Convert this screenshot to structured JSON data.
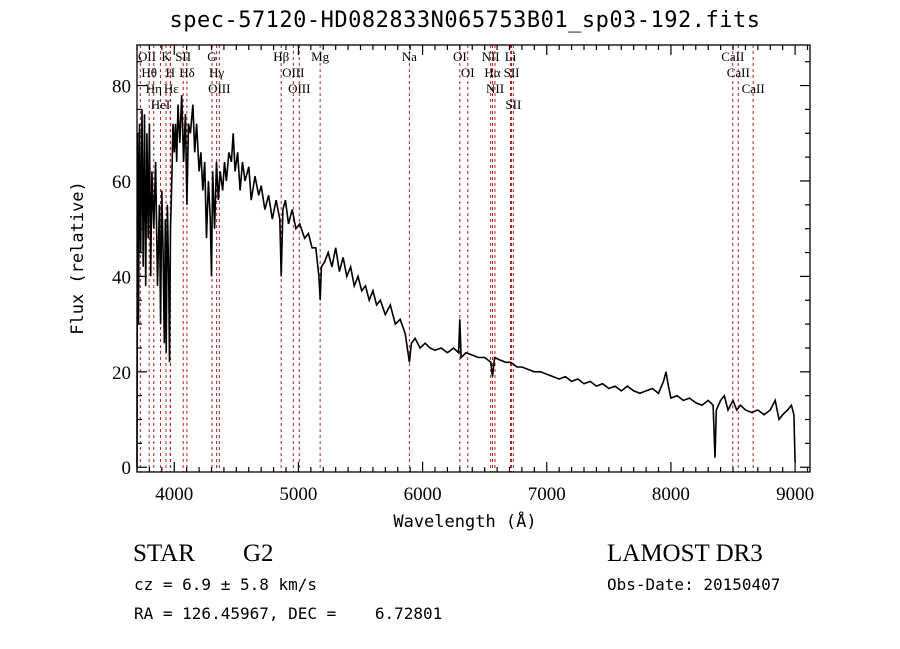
{
  "chart_data": {
    "type": "line",
    "title": "spec-57120-HD082833N065753B01_sp03-192.fits",
    "xlabel": "Wavelength (Å)",
    "ylabel": "Flux (relative)",
    "xlim": [
      3700,
      9120
    ],
    "ylim": [
      -1,
      88.5
    ],
    "xticks": [
      4000,
      5000,
      6000,
      7000,
      8000,
      9000
    ],
    "yticks": [
      0,
      20,
      40,
      60,
      80
    ],
    "grid": false,
    "line_color": "#b22222",
    "spectrum_color": "#000000",
    "spectral_lines": [
      {
        "name": "OII",
        "wavelength": 3727
      },
      {
        "name": "Hθ",
        "wavelength": 3798
      },
      {
        "name": "Hη",
        "wavelength": 3835
      },
      {
        "name": "HeI",
        "wavelength": 3889
      },
      {
        "name": "K",
        "wavelength": 3934
      },
      {
        "name": "H",
        "wavelength": 3968
      },
      {
        "name": "Hε",
        "wavelength": 3970
      },
      {
        "name": "SII",
        "wavelength": 4072
      },
      {
        "name": "Hδ",
        "wavelength": 4102
      },
      {
        "name": "G",
        "wavelength": 4304
      },
      {
        "name": "Hγ",
        "wavelength": 4341
      },
      {
        "name": "OIII",
        "wavelength": 4363
      },
      {
        "name": "Hβ",
        "wavelength": 4861
      },
      {
        "name": "OIII",
        "wavelength": 4959
      },
      {
        "name": "OIII",
        "wavelength": 5007
      },
      {
        "name": "Mg",
        "wavelength": 5175
      },
      {
        "name": "Na",
        "wavelength": 5894
      },
      {
        "name": "OI",
        "wavelength": 6300
      },
      {
        "name": "OI",
        "wavelength": 6364
      },
      {
        "name": "NII",
        "wavelength": 6548
      },
      {
        "name": "Hα",
        "wavelength": 6563
      },
      {
        "name": "NII",
        "wavelength": 6583
      },
      {
        "name": "Li",
        "wavelength": 6708
      },
      {
        "name": "SII",
        "wavelength": 6716
      },
      {
        "name": "SII",
        "wavelength": 6731
      },
      {
        "name": "CaII",
        "wavelength": 8498
      },
      {
        "name": "CaII",
        "wavelength": 8542
      },
      {
        "name": "CaII",
        "wavelength": 8662
      }
    ],
    "series": [
      {
        "name": "spectrum",
        "points": [
          [
            3700,
            0
          ],
          [
            3705,
            70
          ],
          [
            3712,
            30
          ],
          [
            3720,
            72
          ],
          [
            3730,
            45
          ],
          [
            3740,
            75
          ],
          [
            3750,
            42
          ],
          [
            3760,
            74
          ],
          [
            3770,
            38
          ],
          [
            3780,
            70
          ],
          [
            3790,
            48
          ],
          [
            3800,
            72
          ],
          [
            3810,
            40
          ],
          [
            3820,
            62
          ],
          [
            3835,
            50
          ],
          [
            3850,
            64
          ],
          [
            3865,
            38
          ],
          [
            3880,
            55
          ],
          [
            3890,
            30
          ],
          [
            3900,
            58
          ],
          [
            3910,
            45
          ],
          [
            3920,
            26
          ],
          [
            3928,
            52
          ],
          [
            3935,
            24
          ],
          [
            3945,
            55
          ],
          [
            3955,
            40
          ],
          [
            3962,
            22
          ],
          [
            3970,
            50
          ],
          [
            3980,
            60
          ],
          [
            3990,
            72
          ],
          [
            4000,
            66
          ],
          [
            4010,
            72
          ],
          [
            4020,
            64
          ],
          [
            4030,
            76
          ],
          [
            4045,
            68
          ],
          [
            4060,
            78
          ],
          [
            4075,
            64
          ],
          [
            4090,
            74
          ],
          [
            4102,
            55
          ],
          [
            4115,
            72
          ],
          [
            4130,
            70
          ],
          [
            4150,
            76
          ],
          [
            4165,
            66
          ],
          [
            4180,
            72
          ],
          [
            4200,
            62
          ],
          [
            4215,
            66
          ],
          [
            4230,
            58
          ],
          [
            4245,
            64
          ],
          [
            4260,
            48
          ],
          [
            4275,
            60
          ],
          [
            4290,
            52
          ],
          [
            4300,
            40
          ],
          [
            4310,
            62
          ],
          [
            4325,
            50
          ],
          [
            4340,
            64
          ],
          [
            4355,
            56
          ],
          [
            4370,
            62
          ],
          [
            4390,
            58
          ],
          [
            4405,
            64
          ],
          [
            4420,
            60
          ],
          [
            4440,
            66
          ],
          [
            4460,
            64
          ],
          [
            4475,
            70
          ],
          [
            4490,
            62
          ],
          [
            4510,
            66
          ],
          [
            4530,
            58
          ],
          [
            4550,
            64
          ],
          [
            4570,
            60
          ],
          [
            4600,
            63
          ],
          [
            4620,
            56
          ],
          [
            4650,
            61
          ],
          [
            4680,
            57
          ],
          [
            4700,
            59
          ],
          [
            4730,
            54
          ],
          [
            4760,
            57
          ],
          [
            4790,
            52
          ],
          [
            4820,
            56
          ],
          [
            4850,
            52
          ],
          [
            4861,
            40
          ],
          [
            4875,
            54
          ],
          [
            4895,
            56
          ],
          [
            4920,
            51
          ],
          [
            4950,
            54
          ],
          [
            4980,
            50
          ],
          [
            5010,
            51
          ],
          [
            5050,
            48
          ],
          [
            5080,
            49
          ],
          [
            5110,
            46
          ],
          [
            5140,
            46
          ],
          [
            5165,
            40
          ],
          [
            5175,
            35
          ],
          [
            5185,
            42
          ],
          [
            5210,
            43
          ],
          [
            5240,
            45
          ],
          [
            5270,
            42
          ],
          [
            5300,
            46
          ],
          [
            5330,
            41
          ],
          [
            5360,
            44
          ],
          [
            5390,
            40
          ],
          [
            5420,
            42
          ],
          [
            5450,
            38
          ],
          [
            5480,
            40
          ],
          [
            5510,
            37
          ],
          [
            5540,
            38
          ],
          [
            5570,
            35
          ],
          [
            5600,
            37
          ],
          [
            5630,
            34
          ],
          [
            5660,
            35
          ],
          [
            5700,
            32
          ],
          [
            5740,
            34
          ],
          [
            5780,
            30
          ],
          [
            5820,
            31
          ],
          [
            5860,
            28
          ],
          [
            5894,
            22
          ],
          [
            5910,
            26
          ],
          [
            5940,
            27
          ],
          [
            5980,
            25
          ],
          [
            6020,
            26
          ],
          [
            6060,
            25
          ],
          [
            6100,
            24.5
          ],
          [
            6150,
            25
          ],
          [
            6200,
            24
          ],
          [
            6250,
            25
          ],
          [
            6290,
            24
          ],
          [
            6300,
            31
          ],
          [
            6310,
            23
          ],
          [
            6350,
            24
          ],
          [
            6400,
            23.5
          ],
          [
            6450,
            23
          ],
          [
            6500,
            23
          ],
          [
            6550,
            22
          ],
          [
            6563,
            19
          ],
          [
            6580,
            23
          ],
          [
            6620,
            22.5
          ],
          [
            6670,
            22
          ],
          [
            6710,
            22
          ],
          [
            6760,
            21
          ],
          [
            6800,
            21
          ],
          [
            6850,
            20.5
          ],
          [
            6900,
            20
          ],
          [
            6950,
            20
          ],
          [
            7000,
            19.5
          ],
          [
            7050,
            19
          ],
          [
            7100,
            18.5
          ],
          [
            7150,
            19
          ],
          [
            7200,
            18
          ],
          [
            7250,
            18.5
          ],
          [
            7300,
            17.5
          ],
          [
            7350,
            18
          ],
          [
            7400,
            17
          ],
          [
            7450,
            17.5
          ],
          [
            7500,
            16.5
          ],
          [
            7550,
            17
          ],
          [
            7600,
            16
          ],
          [
            7650,
            17
          ],
          [
            7700,
            16
          ],
          [
            7750,
            15.5
          ],
          [
            7800,
            16
          ],
          [
            7850,
            16.5
          ],
          [
            7900,
            15.5
          ],
          [
            7940,
            18
          ],
          [
            7960,
            20
          ],
          [
            7980,
            17
          ],
          [
            8000,
            14.5
          ],
          [
            8050,
            15
          ],
          [
            8100,
            14
          ],
          [
            8150,
            14.5
          ],
          [
            8200,
            13.5
          ],
          [
            8250,
            13
          ],
          [
            8300,
            14
          ],
          [
            8340,
            13
          ],
          [
            8355,
            2
          ],
          [
            8365,
            12
          ],
          [
            8400,
            14
          ],
          [
            8430,
            15
          ],
          [
            8460,
            12
          ],
          [
            8500,
            14
          ],
          [
            8530,
            12
          ],
          [
            8560,
            13
          ],
          [
            8600,
            12
          ],
          [
            8650,
            11.5
          ],
          [
            8700,
            12
          ],
          [
            8750,
            11
          ],
          [
            8800,
            12
          ],
          [
            8840,
            14
          ],
          [
            8870,
            10
          ],
          [
            8900,
            11
          ],
          [
            8940,
            12
          ],
          [
            8970,
            13
          ],
          [
            8990,
            11
          ],
          [
            9000,
            1
          ]
        ]
      }
    ]
  },
  "footer": {
    "object_class": "STAR",
    "subclass": "G2",
    "survey": "LAMOST DR3",
    "redshift": "cz = 6.9 ± 5.8 km/s",
    "obs_date": "Obs-Date: 20150407",
    "coords": "RA = 126.45967, DEC =    6.72801"
  }
}
